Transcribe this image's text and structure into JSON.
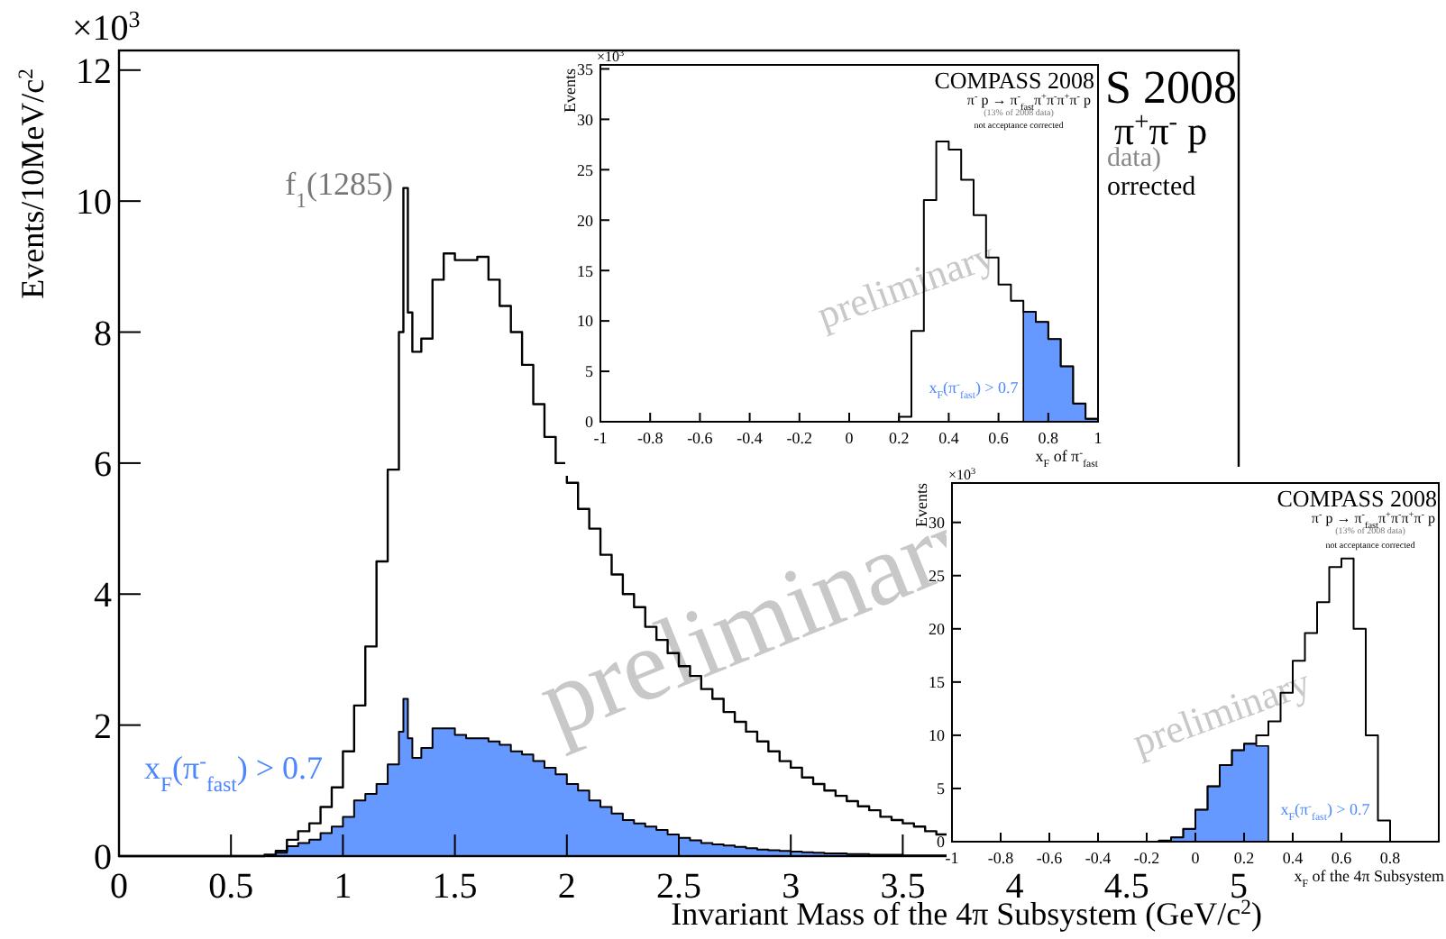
{
  "chart_data": [
    {
      "type": "step",
      "xlabel": "Invariant Mass of the 4π Subsystem (GeV/c$^{2}$)",
      "ylabel": "Events/10MeV/c$^{2}$",
      "series": [
        {
          "type": "area",
          "color": "#6699ff",
          "x": [
            0,
            0.65,
            0.7,
            0.75,
            0.8,
            0.85,
            0.9,
            0.95,
            1.0,
            1.05,
            1.1,
            1.15,
            1.2,
            1.25,
            1.27,
            1.29,
            1.31,
            1.35,
            1.4,
            1.45,
            1.5,
            1.55,
            1.6,
            1.65,
            1.7,
            1.75,
            1.8,
            1.85,
            1.9,
            1.95,
            2.0,
            2.05,
            2.1,
            2.15,
            2.2,
            2.25,
            2.3,
            2.35,
            2.4,
            2.45,
            2.5,
            2.55,
            2.6,
            2.65,
            2.7,
            2.75,
            2.8,
            2.85,
            2.9,
            2.95,
            3.0,
            3.05,
            3.1,
            3.15,
            3.2,
            3.25,
            3.3,
            3.35,
            3.4,
            3.45,
            3.5,
            3.55,
            3.6,
            3.65,
            3.7
          ],
          "values": [
            0,
            0.01,
            0.05,
            0.15,
            0.2,
            0.25,
            0.35,
            0.45,
            0.6,
            0.85,
            0.95,
            1.1,
            1.4,
            1.9,
            2.4,
            1.8,
            1.5,
            1.65,
            1.95,
            1.95,
            1.85,
            1.8,
            1.8,
            1.75,
            1.7,
            1.6,
            1.55,
            1.45,
            1.35,
            1.25,
            1.1,
            1.0,
            0.85,
            0.75,
            0.65,
            0.55,
            0.5,
            0.45,
            0.4,
            0.33,
            0.28,
            0.24,
            0.2,
            0.18,
            0.16,
            0.14,
            0.12,
            0.1,
            0.09,
            0.08,
            0.07,
            0.06,
            0.05,
            0.04,
            0.04,
            0.03,
            0.03,
            0.02,
            0.02,
            0.02,
            0.01,
            0.01,
            0.01,
            0.01,
            0.01
          ]
        },
        {
          "type": "step",
          "color": "#000000",
          "x": [
            0,
            0.65,
            0.7,
            0.75,
            0.8,
            0.85,
            0.9,
            0.95,
            1.0,
            1.05,
            1.1,
            1.15,
            1.2,
            1.25,
            1.27,
            1.29,
            1.31,
            1.35,
            1.4,
            1.45,
            1.5,
            1.55,
            1.6,
            1.65,
            1.7,
            1.75,
            1.8,
            1.85,
            1.9,
            1.95,
            2.0,
            2.05,
            2.1,
            2.15,
            2.2,
            2.25,
            2.3,
            2.35,
            2.4,
            2.45,
            2.5,
            2.55,
            2.6,
            2.65,
            2.7,
            2.75,
            2.8,
            2.85,
            2.9,
            2.95,
            3.0,
            3.05,
            3.1,
            3.15,
            3.2,
            3.25,
            3.3,
            3.35,
            3.4,
            3.45,
            3.5,
            3.55,
            3.6,
            3.65,
            3.7
          ],
          "values": [
            0,
            0.02,
            0.08,
            0.25,
            0.38,
            0.5,
            0.75,
            1.05,
            1.6,
            2.3,
            3.2,
            4.5,
            5.9,
            8.0,
            10.2,
            8.3,
            7.7,
            7.9,
            8.8,
            9.2,
            9.1,
            9.1,
            9.15,
            8.8,
            8.4,
            8.0,
            7.5,
            6.9,
            6.4,
            6.0,
            5.7,
            5.3,
            5.0,
            4.6,
            4.3,
            4.0,
            3.8,
            3.5,
            3.3,
            3.1,
            2.9,
            2.75,
            2.55,
            2.4,
            2.2,
            2.05,
            1.9,
            1.75,
            1.6,
            1.45,
            1.35,
            1.2,
            1.1,
            1.0,
            0.92,
            0.84,
            0.76,
            0.7,
            0.6,
            0.55,
            0.5,
            0.45,
            0.38,
            0.33,
            0.33
          ]
        }
      ],
      "xlim": [
        0,
        5
      ],
      "xticks": [
        0,
        0.5,
        1,
        1.5,
        2,
        2.5,
        3,
        3.5,
        4,
        4.5,
        5
      ],
      "ylim": [
        0,
        12.3
      ],
      "yticks": [
        0,
        2,
        4,
        6,
        8,
        10,
        12
      ],
      "annotations": [
        "×10$^{3}$",
        "f$_{1}$(1285)",
        "x$_{F}$(π$^{-}$$_{fast}$) > 0.7",
        "preliminary",
        "S 2008",
        "π$^{+}$π$^{-}$ p",
        "data)",
        "orrected"
      ]
    },
    {
      "type": "step",
      "xlabel": "x$_{F}$ of π$^{-}$$_{fast}$",
      "ylabel": "Events",
      "series": [
        {
          "type": "area",
          "color": "#6699ff",
          "x": [
            0.7,
            0.75,
            0.8,
            0.85,
            0.9,
            0.95,
            1.0
          ],
          "values": [
            10.9,
            9.9,
            8.2,
            5.5,
            1.8,
            0.3,
            0
          ]
        },
        {
          "type": "step",
          "color": "#000000",
          "x": [
            -1,
            0.2,
            0.25,
            0.3,
            0.35,
            0.4,
            0.45,
            0.5,
            0.55,
            0.6,
            0.65,
            0.7,
            0.75,
            0.8,
            0.85,
            0.9,
            0.95,
            1.0
          ],
          "values": [
            0,
            0.5,
            9,
            22,
            27.8,
            27,
            24,
            20.5,
            16.3,
            13.6,
            12.0,
            10.9,
            9.9,
            8.2,
            5.5,
            1.8,
            0.3,
            0
          ]
        }
      ],
      "xlim": [
        -1,
        1
      ],
      "xticks": [
        -1,
        -0.8,
        -0.6,
        -0.4,
        -0.2,
        0,
        0.2,
        0.4,
        0.6,
        0.8,
        1
      ],
      "ylim": [
        0,
        35.4
      ],
      "yticks": [
        0,
        5,
        10,
        15,
        20,
        25,
        30,
        35
      ],
      "annotations": [
        "×10$^{3}$",
        "COMPASS 2008",
        "π$^{-}$ p → π$^{-}$$_{fast}$π$^{+}$π$^{-}$π$^{+}$π$^{-}$ p",
        "(13% of 2008 data)",
        "not acceptance corrected",
        "preliminary",
        "x$_{F}$(π$^{-}$$_{fast}$) > 0.7"
      ]
    },
    {
      "type": "step",
      "xlabel": "x$_{F}$ of the 4π Subsystem",
      "ylabel": "Events",
      "series": [
        {
          "type": "area",
          "color": "#6699ff",
          "x": [
            -0.15,
            -0.1,
            -0.05,
            0,
            0.05,
            0.1,
            0.15,
            0.2,
            0.25,
            0.3
          ],
          "values": [
            0.1,
            0.4,
            1.2,
            3,
            5.2,
            7.2,
            8.6,
            9.2,
            9.0,
            0
          ]
        },
        {
          "type": "step",
          "color": "#000000",
          "x": [
            -1,
            -0.15,
            -0.1,
            -0.05,
            0,
            0.05,
            0.1,
            0.15,
            0.2,
            0.25,
            0.3,
            0.35,
            0.4,
            0.45,
            0.5,
            0.55,
            0.6,
            0.65,
            0.7,
            0.75,
            0.8,
            1
          ],
          "values": [
            0,
            0.1,
            0.4,
            1.2,
            3,
            5.2,
            7.2,
            8.6,
            9.2,
            10,
            11.3,
            14,
            17,
            19.6,
            22.5,
            25.8,
            26.6,
            20,
            10,
            2,
            0,
            0
          ]
        }
      ],
      "xlim": [
        -1,
        1
      ],
      "xticks": [
        -1,
        -0.8,
        -0.6,
        -0.4,
        -0.2,
        0,
        0.2,
        0.4,
        0.6,
        0.8
      ],
      "ylim": [
        0,
        33.7
      ],
      "yticks": [
        0,
        5,
        10,
        15,
        20,
        25,
        30
      ],
      "annotations": [
        "×10$^{3}$",
        "COMPASS 2008",
        "π$^{-}$ p → π$^{-}$$_{fast}$π$^{+}$π$^{-}$π$^{+}$π$^{-}$ p",
        "(13% of 2008 data)",
        "not acceptance corrected",
        "preliminary",
        "x$_{F}$(π$^{-}$$_{fast}$) > 0.7"
      ]
    }
  ]
}
